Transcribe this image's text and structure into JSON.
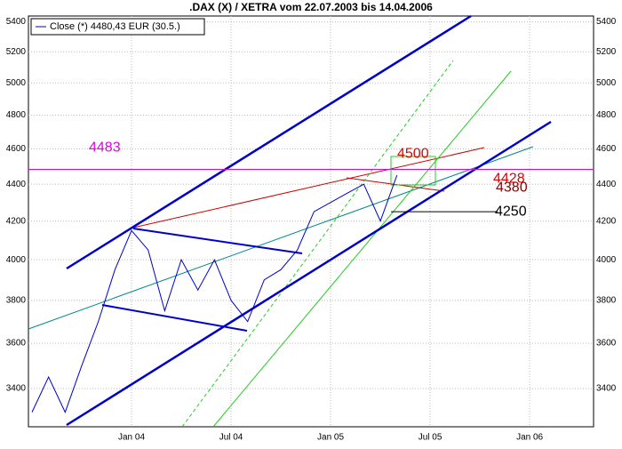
{
  "chart_data": {
    "type": "line",
    "title": ".DAX (X) / XETRA vom 22.07.2003 bis 14.04.2006",
    "categories": [
      null,
      null,
      null,
      null,
      null,
      null,
      "Jan 04",
      null,
      null,
      null,
      null,
      null,
      "Jul 04",
      null,
      null,
      null,
      null,
      null,
      "Jan 05",
      null,
      null,
      null,
      null,
      null,
      "Jul 05",
      null,
      null,
      null,
      null,
      null,
      "Jan 06",
      null,
      null,
      null
    ],
    "series": [
      {
        "name": "Close (*) 4480,43 EUR (30.5.)",
        "color": "#0000cc",
        "values": [
          3300,
          3450,
          3300,
          3500,
          3700,
          3950,
          4150,
          4050,
          3750,
          4000,
          3850,
          4000,
          3800,
          3700,
          3900,
          3950,
          4050,
          4250,
          4300,
          4350,
          4400,
          4200,
          4450,
          null,
          null,
          null,
          null,
          null,
          null,
          null,
          null,
          null,
          null,
          null
        ]
      }
    ],
    "ylim": [
      3240,
      5440
    ],
    "yticks": [
      3400,
      3600,
      3800,
      4000,
      4200,
      4400,
      4600,
      4800,
      5000,
      5200,
      5400
    ],
    "log_scale": true,
    "grid": true,
    "levels": [
      {
        "value": 4483,
        "color": "#e000e0"
      },
      {
        "value": 4500,
        "color": "#dd0000"
      },
      {
        "value": 4428,
        "color": "#dd0000"
      },
      {
        "value": 4380,
        "color": "#880000"
      },
      {
        "value": 4250,
        "color": "#000000"
      }
    ]
  }
}
